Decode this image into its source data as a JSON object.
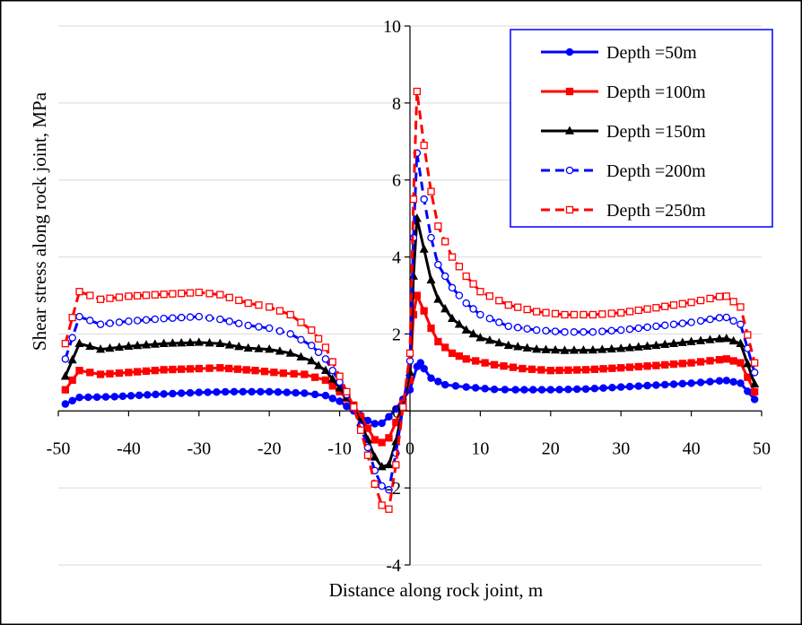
{
  "chart_data": {
    "type": "line",
    "title": "",
    "xlabel": "Distance along rock joint, m",
    "ylabel": "Shear stress along  rock joint, MPa",
    "xlim": [
      -50,
      50
    ],
    "ylim": [
      -4,
      10
    ],
    "xticks": [
      -50,
      -40,
      -30,
      -20,
      -10,
      0,
      10,
      20,
      30,
      40,
      50
    ],
    "yticks": [
      -4,
      -2,
      0,
      2,
      4,
      6,
      8,
      10
    ],
    "xtick_labels": [
      "-50",
      "-40",
      "-30",
      "-20",
      "-10",
      "0",
      "10",
      "20",
      "30",
      "40",
      "50"
    ],
    "ytick_labels": [
      "-4",
      "-2",
      "0",
      "2",
      "4",
      "6",
      "8",
      "10"
    ],
    "grid": "horizontal",
    "legend_position": "top-right",
    "series": [
      {
        "name": "Depth =50m",
        "color": "#0000ff",
        "line_style": "solid",
        "marker": "circle-filled",
        "points": [
          [
            -49,
            0.18
          ],
          [
            -47,
            0.35
          ],
          [
            -42,
            0.37
          ],
          [
            -35,
            0.44
          ],
          [
            -30,
            0.48
          ],
          [
            -25,
            0.5
          ],
          [
            -20,
            0.5
          ],
          [
            -15,
            0.46
          ],
          [
            -12,
            0.4
          ],
          [
            -10,
            0.25
          ],
          [
            -9,
            0.12
          ],
          [
            -8,
            0.0
          ],
          [
            -7,
            -0.12
          ],
          [
            -6,
            -0.25
          ],
          [
            -5,
            -0.33
          ],
          [
            -4,
            -0.32
          ],
          [
            -3,
            -0.15
          ],
          [
            -2,
            0.05
          ],
          [
            -1,
            0.3
          ],
          [
            0,
            0.55
          ],
          [
            1,
            1.15
          ],
          [
            1.5,
            1.25
          ],
          [
            2,
            1.1
          ],
          [
            3,
            0.85
          ],
          [
            5,
            0.68
          ],
          [
            8,
            0.62
          ],
          [
            12,
            0.56
          ],
          [
            15,
            0.55
          ],
          [
            20,
            0.55
          ],
          [
            25,
            0.57
          ],
          [
            30,
            0.62
          ],
          [
            35,
            0.67
          ],
          [
            40,
            0.72
          ],
          [
            44,
            0.78
          ],
          [
            45,
            0.79
          ],
          [
            47,
            0.72
          ],
          [
            49,
            0.3
          ]
        ]
      },
      {
        "name": "Depth =100m",
        "color": "#ff0000",
        "line_style": "solid",
        "marker": "square-filled",
        "points": [
          [
            -49,
            0.55
          ],
          [
            -47,
            1.05
          ],
          [
            -44,
            0.95
          ],
          [
            -40,
            1.0
          ],
          [
            -35,
            1.07
          ],
          [
            -30,
            1.1
          ],
          [
            -27,
            1.12
          ],
          [
            -22,
            1.05
          ],
          [
            -18,
            0.98
          ],
          [
            -15,
            0.95
          ],
          [
            -12,
            0.8
          ],
          [
            -10,
            0.5
          ],
          [
            -8,
            0.15
          ],
          [
            -7,
            -0.15
          ],
          [
            -6,
            -0.45
          ],
          [
            -5,
            -0.75
          ],
          [
            -4,
            -0.82
          ],
          [
            -3,
            -0.7
          ],
          [
            -2,
            -0.3
          ],
          [
            -1,
            0.2
          ],
          [
            0,
            0.8
          ],
          [
            0.5,
            2.5
          ],
          [
            1,
            3.0
          ],
          [
            2,
            2.6
          ],
          [
            3,
            2.15
          ],
          [
            4,
            1.8
          ],
          [
            6,
            1.5
          ],
          [
            8,
            1.35
          ],
          [
            12,
            1.2
          ],
          [
            16,
            1.1
          ],
          [
            20,
            1.05
          ],
          [
            25,
            1.07
          ],
          [
            30,
            1.12
          ],
          [
            35,
            1.18
          ],
          [
            40,
            1.25
          ],
          [
            44,
            1.33
          ],
          [
            45,
            1.35
          ],
          [
            47,
            1.25
          ],
          [
            49,
            0.5
          ]
        ]
      },
      {
        "name": "Depth =150m",
        "color": "#000000",
        "line_style": "solid",
        "marker": "triangle-filled",
        "points": [
          [
            -49,
            0.9
          ],
          [
            -47,
            1.75
          ],
          [
            -44,
            1.6
          ],
          [
            -40,
            1.68
          ],
          [
            -35,
            1.75
          ],
          [
            -30,
            1.78
          ],
          [
            -27,
            1.75
          ],
          [
            -23,
            1.63
          ],
          [
            -20,
            1.6
          ],
          [
            -17,
            1.5
          ],
          [
            -14,
            1.3
          ],
          [
            -12,
            1.05
          ],
          [
            -10,
            0.6
          ],
          [
            -8,
            0.1
          ],
          [
            -7,
            -0.3
          ],
          [
            -6,
            -0.75
          ],
          [
            -5,
            -1.2
          ],
          [
            -4,
            -1.45
          ],
          [
            -3,
            -1.4
          ],
          [
            -2,
            -0.8
          ],
          [
            -1,
            0.1
          ],
          [
            0,
            1.0
          ],
          [
            0.5,
            3.5
          ],
          [
            1,
            5.0
          ],
          [
            2,
            4.2
          ],
          [
            3,
            3.4
          ],
          [
            4,
            2.9
          ],
          [
            6,
            2.4
          ],
          [
            8,
            2.1
          ],
          [
            10,
            1.9
          ],
          [
            14,
            1.7
          ],
          [
            18,
            1.6
          ],
          [
            22,
            1.57
          ],
          [
            26,
            1.58
          ],
          [
            30,
            1.62
          ],
          [
            35,
            1.7
          ],
          [
            40,
            1.8
          ],
          [
            44,
            1.87
          ],
          [
            45,
            1.88
          ],
          [
            47,
            1.75
          ],
          [
            49,
            0.7
          ]
        ]
      },
      {
        "name": "Depth =200m",
        "color": "#0000ff",
        "line_style": "dashed",
        "marker": "circle-open",
        "points": [
          [
            -49,
            1.35
          ],
          [
            -47,
            2.45
          ],
          [
            -44,
            2.25
          ],
          [
            -40,
            2.33
          ],
          [
            -35,
            2.4
          ],
          [
            -30,
            2.45
          ],
          [
            -27,
            2.38
          ],
          [
            -23,
            2.22
          ],
          [
            -20,
            2.15
          ],
          [
            -17,
            2.0
          ],
          [
            -14,
            1.7
          ],
          [
            -12,
            1.35
          ],
          [
            -10,
            0.75
          ],
          [
            -8,
            0.1
          ],
          [
            -7,
            -0.4
          ],
          [
            -6,
            -0.95
          ],
          [
            -5,
            -1.55
          ],
          [
            -4,
            -1.95
          ],
          [
            -3,
            -2.05
          ],
          [
            -2,
            -1.1
          ],
          [
            -1,
            0.1
          ],
          [
            0,
            1.3
          ],
          [
            0.5,
            4.5
          ],
          [
            1,
            6.7
          ],
          [
            2,
            5.5
          ],
          [
            3,
            4.5
          ],
          [
            4,
            3.8
          ],
          [
            6,
            3.2
          ],
          [
            8,
            2.8
          ],
          [
            10,
            2.5
          ],
          [
            14,
            2.2
          ],
          [
            18,
            2.1
          ],
          [
            22,
            2.05
          ],
          [
            26,
            2.05
          ],
          [
            30,
            2.1
          ],
          [
            35,
            2.2
          ],
          [
            40,
            2.3
          ],
          [
            44,
            2.42
          ],
          [
            45,
            2.43
          ],
          [
            47,
            2.25
          ],
          [
            49,
            1.0
          ]
        ]
      },
      {
        "name": "Depth =250m",
        "color": "#ff0000",
        "line_style": "dashed",
        "marker": "square-open",
        "points": [
          [
            -49,
            1.75
          ],
          [
            -47,
            3.1
          ],
          [
            -44,
            2.9
          ],
          [
            -40,
            2.98
          ],
          [
            -35,
            3.03
          ],
          [
            -30,
            3.08
          ],
          [
            -27,
            3.02
          ],
          [
            -23,
            2.8
          ],
          [
            -20,
            2.7
          ],
          [
            -17,
            2.5
          ],
          [
            -14,
            2.1
          ],
          [
            -12,
            1.65
          ],
          [
            -10,
            0.9
          ],
          [
            -8,
            0.1
          ],
          [
            -7,
            -0.5
          ],
          [
            -6,
            -1.15
          ],
          [
            -5,
            -1.9
          ],
          [
            -4,
            -2.45
          ],
          [
            -3,
            -2.55
          ],
          [
            -2,
            -1.4
          ],
          [
            -1,
            0.1
          ],
          [
            0,
            1.5
          ],
          [
            0.5,
            5.5
          ],
          [
            1,
            8.3
          ],
          [
            2,
            6.9
          ],
          [
            3,
            5.7
          ],
          [
            4,
            4.8
          ],
          [
            6,
            4.0
          ],
          [
            8,
            3.5
          ],
          [
            10,
            3.1
          ],
          [
            14,
            2.75
          ],
          [
            18,
            2.58
          ],
          [
            22,
            2.5
          ],
          [
            26,
            2.5
          ],
          [
            30,
            2.55
          ],
          [
            35,
            2.68
          ],
          [
            40,
            2.82
          ],
          [
            44,
            2.97
          ],
          [
            45,
            2.98
          ],
          [
            47,
            2.7
          ],
          [
            49,
            1.25
          ]
        ]
      }
    ]
  }
}
